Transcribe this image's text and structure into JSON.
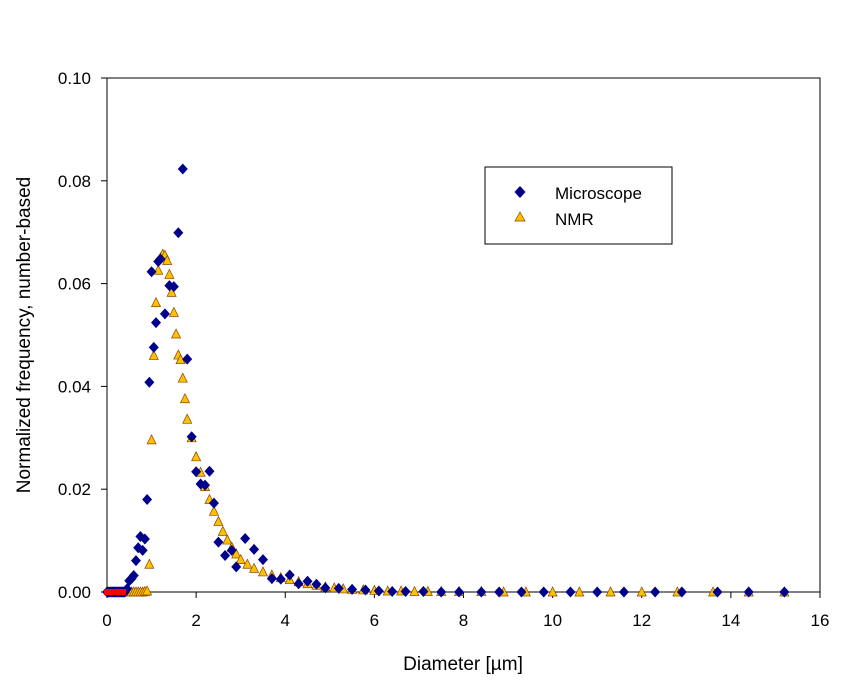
{
  "chart_data": {
    "type": "scatter",
    "title": "",
    "xlabel": "Diameter [µm]",
    "ylabel": "Normalized frequency, number-based",
    "xlim": [
      0,
      16
    ],
    "ylim": [
      0,
      0.1
    ],
    "xticks": [
      "0",
      "2",
      "4",
      "6",
      "8",
      "10",
      "12",
      "14",
      "16"
    ],
    "yticks": [
      "0.00",
      "0.02",
      "0.04",
      "0.06",
      "0.08",
      "0.10"
    ],
    "grid": false,
    "legend_position": "top-right",
    "series": [
      {
        "name": "Microscope",
        "marker": "diamond",
        "color": "#00008B",
        "x": [
          0.0,
          0.02,
          0.04,
          0.06,
          0.08,
          0.1,
          0.12,
          0.14,
          0.16,
          0.18,
          0.2,
          0.22,
          0.24,
          0.26,
          0.28,
          0.3,
          0.32,
          0.34,
          0.36,
          0.38,
          0.4,
          0.45,
          0.5,
          0.55,
          0.6,
          0.65,
          0.7,
          0.75,
          0.8,
          0.85,
          0.9,
          0.95,
          1.0,
          1.05,
          1.1,
          1.15,
          1.2,
          1.3,
          1.4,
          1.5,
          1.6,
          1.7,
          1.8,
          1.9,
          2.0,
          2.1,
          2.2,
          2.3,
          2.4,
          2.5,
          2.65,
          2.8,
          2.9,
          3.1,
          3.3,
          3.5,
          3.7,
          3.9,
          4.1,
          4.3,
          4.5,
          4.7,
          4.9,
          5.2,
          5.5,
          5.8,
          6.1,
          6.4,
          6.7,
          7.1,
          7.5,
          7.9,
          8.4,
          8.8,
          9.3,
          9.8,
          10.4,
          11.0,
          11.6,
          12.3,
          12.9,
          13.7,
          14.4,
          15.2
        ],
        "y": [
          0,
          0,
          0,
          0,
          0,
          0,
          0,
          0,
          0,
          0,
          0,
          0,
          0,
          0,
          0,
          0,
          0,
          0,
          0,
          0,
          0,
          0.0006,
          0.0022,
          0.0026,
          0.0032,
          0.0061,
          0.0086,
          0.0108,
          0.0081,
          0.0103,
          0.018,
          0.0408,
          0.0623,
          0.0476,
          0.0524,
          0.0643,
          0.0648,
          0.0541,
          0.0596,
          0.0594,
          0.0699,
          0.0823,
          0.0453,
          0.0302,
          0.0234,
          0.021,
          0.0208,
          0.0235,
          0.0173,
          0.0097,
          0.0071,
          0.0081,
          0.0049,
          0.0104,
          0.0083,
          0.0063,
          0.0026,
          0.0025,
          0.0033,
          0.0016,
          0.0021,
          0.0015,
          0.0008,
          0.0007,
          0.0005,
          0.0004,
          0.0002,
          0.0001,
          0.0001,
          0.0001,
          0,
          0,
          0,
          0,
          0,
          0,
          0,
          0,
          0,
          0,
          0,
          0,
          0,
          0
        ]
      },
      {
        "name": "NMR",
        "marker": "triangle",
        "color": "#FFC000",
        "x": [
          0.5,
          0.55,
          0.6,
          0.65,
          0.7,
          0.75,
          0.8,
          0.85,
          0.9,
          0.95,
          1.0,
          1.05,
          1.1,
          1.15,
          1.2,
          1.25,
          1.3,
          1.35,
          1.4,
          1.45,
          1.5,
          1.55,
          1.6,
          1.65,
          1.7,
          1.75,
          1.8,
          1.9,
          2.0,
          2.1,
          2.2,
          2.3,
          2.4,
          2.5,
          2.6,
          2.7,
          2.8,
          2.9,
          3.0,
          3.15,
          3.3,
          3.5,
          3.7,
          3.9,
          4.1,
          4.3,
          4.5,
          4.7,
          4.9,
          5.1,
          5.3,
          5.5,
          5.75,
          6.0,
          6.3,
          6.6,
          6.9,
          7.2,
          7.5,
          7.9,
          8.4,
          8.9,
          9.4,
          10.0,
          10.6,
          11.3,
          12.0,
          12.8,
          13.6,
          14.4,
          15.2
        ],
        "y": [
          0,
          0,
          0,
          0,
          0,
          0,
          0,
          0.0001,
          0.0002,
          0.0054,
          0.0296,
          0.046,
          0.0563,
          0.0626,
          0.065,
          0.0657,
          0.0655,
          0.0645,
          0.0618,
          0.0583,
          0.0544,
          0.0502,
          0.0461,
          0.0452,
          0.0416,
          0.0376,
          0.0336,
          0.03,
          0.0263,
          0.0233,
          0.0205,
          0.018,
          0.0157,
          0.0137,
          0.0118,
          0.0101,
          0.0087,
          0.0074,
          0.0063,
          0.0054,
          0.0046,
          0.0039,
          0.0033,
          0.0028,
          0.0024,
          0.002,
          0.0016,
          0.0013,
          0.001,
          0.0008,
          0.0006,
          0.0005,
          0.0004,
          0.0003,
          0.0002,
          0.0002,
          0.0001,
          0.0001,
          0.0001,
          0.0001,
          0.0001,
          0,
          0,
          0,
          0,
          0,
          0,
          0,
          0,
          0,
          0
        ]
      },
      {
        "name": "",
        "marker": "square",
        "color": "#FF0000",
        "x": [
          0.0,
          0.03,
          0.06,
          0.09,
          0.12,
          0.15,
          0.18,
          0.21,
          0.24,
          0.27,
          0.3,
          0.33,
          0.36
        ],
        "y": [
          0,
          0,
          0,
          0,
          0,
          0,
          0,
          0,
          0,
          0,
          0,
          0,
          0
        ]
      }
    ]
  }
}
